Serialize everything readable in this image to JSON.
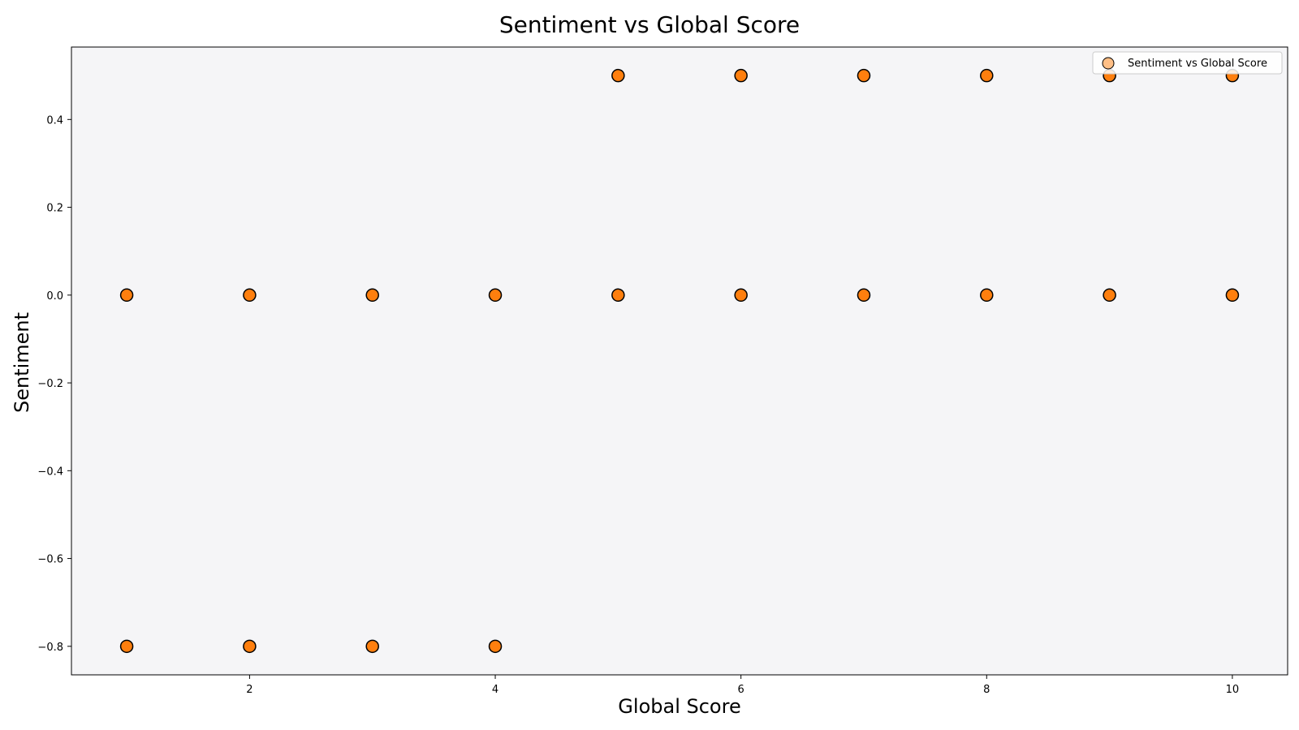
{
  "chart_data": {
    "type": "scatter",
    "title": "Sentiment vs Global Score",
    "xlabel": "Global Score",
    "ylabel": "Sentiment",
    "xlim": [
      0.55,
      10.45
    ],
    "ylim": [
      -0.865,
      0.565
    ],
    "xticks": [
      2,
      4,
      6,
      8,
      10
    ],
    "xtick_labels": [
      "2",
      "4",
      "6",
      "8",
      "10"
    ],
    "yticks": [
      -0.8,
      -0.6,
      -0.4,
      -0.2,
      0.0,
      0.2,
      0.4
    ],
    "ytick_labels": [
      "−0.8",
      "−0.6",
      "−0.4",
      "−0.2",
      "0.0",
      "0.2",
      "0.4"
    ],
    "grid": false,
    "legend_position": "top-right",
    "plot_background": "#f5f5f7",
    "series": [
      {
        "name": "Sentiment vs Global Score",
        "color": "#ff7f0e",
        "edge_color": "#000000",
        "points": [
          {
            "x": 1,
            "y": 0.0
          },
          {
            "x": 1,
            "y": -0.8
          },
          {
            "x": 2,
            "y": 0.0
          },
          {
            "x": 2,
            "y": -0.8
          },
          {
            "x": 3,
            "y": 0.0
          },
          {
            "x": 3,
            "y": -0.8
          },
          {
            "x": 4,
            "y": 0.0
          },
          {
            "x": 4,
            "y": -0.8
          },
          {
            "x": 5,
            "y": 0.5
          },
          {
            "x": 5,
            "y": 0.0
          },
          {
            "x": 6,
            "y": 0.5
          },
          {
            "x": 6,
            "y": 0.0
          },
          {
            "x": 7,
            "y": 0.5
          },
          {
            "x": 7,
            "y": 0.0
          },
          {
            "x": 8,
            "y": 0.5
          },
          {
            "x": 8,
            "y": 0.0
          },
          {
            "x": 9,
            "y": 0.5
          },
          {
            "x": 9,
            "y": 0.0
          },
          {
            "x": 10,
            "y": 0.5
          },
          {
            "x": 10,
            "y": 0.0
          }
        ]
      }
    ]
  }
}
